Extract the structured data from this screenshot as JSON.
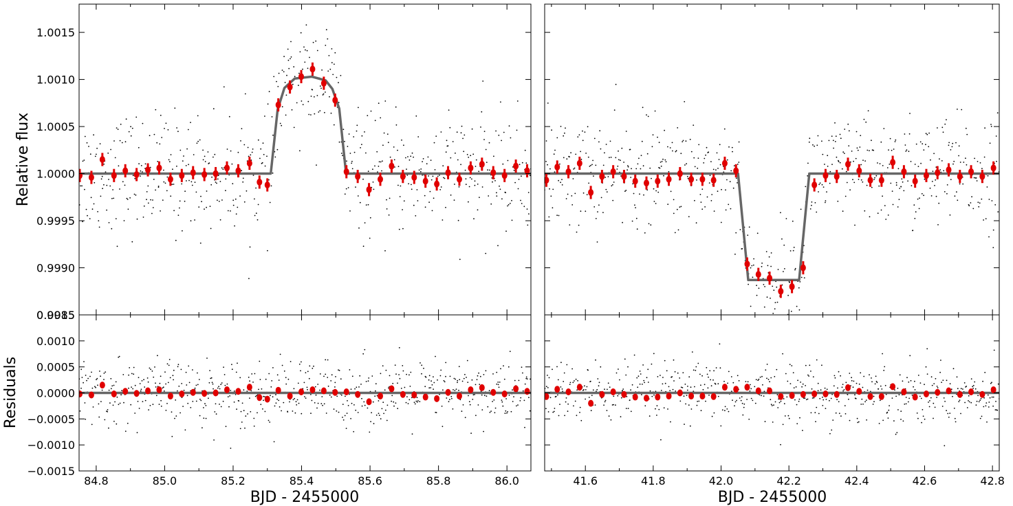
{
  "figure": {
    "ylabel_top": "Relative flux",
    "ylabel_bottom": "Residuals",
    "xlabel_left": "BJD - 2455000",
    "xlabel_right": "BJD - 2455000"
  },
  "colors": {
    "binned": "#e00000",
    "model": "#666666",
    "raw": "#000000"
  },
  "chart_data": [
    {
      "type": "scatter",
      "panel": "top-left",
      "ylabel": "Relative flux",
      "xlim": [
        84.75,
        86.07
      ],
      "ylim": [
        0.9985,
        1.0018
      ],
      "xticks": [
        "84.8",
        "85.0",
        "85.2",
        "85.4",
        "85.6",
        "85.8",
        "86.0"
      ],
      "yticks": [
        "0.9985",
        "0.9990",
        "0.9995",
        "1.0000",
        "1.0005",
        "1.0010",
        "1.0015"
      ],
      "model": {
        "name": "",
        "x": [
          84.75,
          85.31,
          85.33,
          85.35,
          85.38,
          85.43,
          85.47,
          85.49,
          85.51,
          85.53,
          86.07
        ],
        "y": [
          1.0,
          1.0,
          1.00068,
          1.00091,
          1.00101,
          1.00103,
          1.00099,
          1.0009,
          1.00069,
          1.0,
          1.0
        ]
      },
      "binned": [
        [
          84.752,
          0.99998
        ],
        [
          84.786,
          0.99996
        ],
        [
          84.818,
          1.00015
        ],
        [
          84.852,
          0.99998
        ],
        [
          84.885,
          1.00003
        ],
        [
          84.918,
          0.99999
        ],
        [
          84.951,
          1.00004
        ],
        [
          84.984,
          1.00006
        ],
        [
          85.017,
          0.99994
        ],
        [
          85.05,
          0.99998
        ],
        [
          85.083,
          1.00001
        ],
        [
          85.116,
          0.99999
        ],
        [
          85.149,
          1.0
        ],
        [
          85.182,
          1.00006
        ],
        [
          85.215,
          1.00003
        ],
        [
          85.248,
          1.00011
        ],
        [
          85.277,
          0.99991
        ],
        [
          85.3,
          0.99988
        ],
        [
          85.332,
          1.00073
        ],
        [
          85.366,
          1.00092
        ],
        [
          85.399,
          1.00103
        ],
        [
          85.432,
          1.00111
        ],
        [
          85.465,
          1.00096
        ],
        [
          85.498,
          1.00078
        ],
        [
          85.531,
          1.00002
        ],
        [
          85.564,
          0.99997
        ],
        [
          85.597,
          0.99983
        ],
        [
          85.63,
          0.99994
        ],
        [
          85.663,
          1.00008
        ],
        [
          85.696,
          0.99997
        ],
        [
          85.729,
          0.99996
        ],
        [
          85.762,
          0.99992
        ],
        [
          85.795,
          0.99989
        ],
        [
          85.828,
          1.00001
        ],
        [
          85.861,
          0.99994
        ],
        [
          85.894,
          1.00006
        ],
        [
          85.927,
          1.0001
        ],
        [
          85.96,
          1.00001
        ],
        [
          85.993,
          0.99998
        ],
        [
          86.026,
          1.00008
        ],
        [
          86.059,
          1.00003
        ]
      ]
    },
    {
      "type": "scatter",
      "panel": "top-right",
      "ylabel": "",
      "xlim": [
        41.48,
        42.82
      ],
      "ylim": [
        0.9985,
        1.0018
      ],
      "xticks": [
        "41.6",
        "41.8",
        "42.0",
        "42.2",
        "42.4",
        "42.6",
        "42.8"
      ],
      "yticks": [],
      "model": {
        "name": "",
        "x": [
          41.48,
          42.05,
          42.08,
          42.23,
          42.26,
          42.82
        ],
        "y": [
          1.0,
          1.0,
          0.99887,
          0.99887,
          1.0,
          1.0
        ]
      },
      "binned": [
        [
          41.485,
          0.99993
        ],
        [
          41.517,
          1.00007
        ],
        [
          41.55,
          1.00002
        ],
        [
          41.583,
          1.00011
        ],
        [
          41.616,
          0.9998
        ],
        [
          41.649,
          0.99997
        ],
        [
          41.682,
          1.00002
        ],
        [
          41.714,
          0.99997
        ],
        [
          41.747,
          0.99992
        ],
        [
          41.78,
          0.9999
        ],
        [
          41.813,
          0.99992
        ],
        [
          41.846,
          0.99994
        ],
        [
          41.879,
          1.0
        ],
        [
          41.912,
          0.99994
        ],
        [
          41.945,
          0.99994
        ],
        [
          41.978,
          0.99993
        ],
        [
          42.011,
          1.00011
        ],
        [
          42.044,
          1.00003
        ],
        [
          42.077,
          0.99904
        ],
        [
          42.11,
          0.99893
        ],
        [
          42.143,
          0.99889
        ],
        [
          42.176,
          0.99875
        ],
        [
          42.209,
          0.9988
        ],
        [
          42.242,
          0.999
        ],
        [
          42.275,
          0.99988
        ],
        [
          42.308,
          0.99998
        ],
        [
          42.341,
          0.99997
        ],
        [
          42.374,
          1.0001
        ],
        [
          42.407,
          1.00003
        ],
        [
          42.44,
          0.99993
        ],
        [
          42.473,
          0.99993
        ],
        [
          42.506,
          1.00012
        ],
        [
          42.539,
          1.00002
        ],
        [
          42.572,
          0.99992
        ],
        [
          42.605,
          0.99998
        ],
        [
          42.638,
          1.00001
        ],
        [
          42.671,
          1.00004
        ],
        [
          42.704,
          0.99997
        ],
        [
          42.737,
          1.00002
        ],
        [
          42.77,
          0.99997
        ],
        [
          42.803,
          1.00006
        ]
      ]
    },
    {
      "type": "scatter",
      "panel": "bottom-left",
      "ylabel": "Residuals",
      "xlabel": "BJD - 2455000",
      "xlim": [
        84.75,
        86.07
      ],
      "ylim": [
        -0.0015,
        0.0015
      ],
      "xticks": [
        "84.8",
        "85.0",
        "85.2",
        "85.4",
        "85.6",
        "85.8",
        "86.0"
      ],
      "yticks": [
        "-0.0015",
        "-0.0010",
        "-0.0005",
        "0.0000",
        "0.0005",
        "0.0010",
        "0.0015"
      ],
      "model": {
        "name": "",
        "x": [
          84.75,
          86.07
        ],
        "y": [
          0.0,
          0.0
        ]
      },
      "binned": [
        [
          84.752,
          -2e-05
        ],
        [
          84.786,
          -4e-05
        ],
        [
          84.818,
          0.00015
        ],
        [
          84.852,
          -2e-05
        ],
        [
          84.885,
          3e-05
        ],
        [
          84.918,
          -1e-05
        ],
        [
          84.951,
          4e-05
        ],
        [
          84.984,
          6e-05
        ],
        [
          85.017,
          -6e-05
        ],
        [
          85.05,
          -2e-05
        ],
        [
          85.083,
          1e-05
        ],
        [
          85.116,
          -1e-05
        ],
        [
          85.149,
          0.0
        ],
        [
          85.182,
          6e-05
        ],
        [
          85.215,
          3e-05
        ],
        [
          85.248,
          0.00011
        ],
        [
          85.277,
          -9e-05
        ],
        [
          85.3,
          -0.00012
        ],
        [
          85.332,
          5e-05
        ],
        [
          85.366,
          -6e-05
        ],
        [
          85.399,
          2e-05
        ],
        [
          85.432,
          6e-05
        ],
        [
          85.465,
          4e-05
        ],
        [
          85.498,
          1e-05
        ],
        [
          85.531,
          2e-05
        ],
        [
          85.564,
          -3e-05
        ],
        [
          85.597,
          -0.00017
        ],
        [
          85.63,
          -6e-05
        ],
        [
          85.663,
          8e-05
        ],
        [
          85.696,
          -3e-05
        ],
        [
          85.729,
          -4e-05
        ],
        [
          85.762,
          -8e-05
        ],
        [
          85.795,
          -0.00011
        ],
        [
          85.828,
          1e-05
        ],
        [
          85.861,
          -6e-05
        ],
        [
          85.894,
          6e-05
        ],
        [
          85.927,
          0.0001
        ],
        [
          85.96,
          1e-05
        ],
        [
          85.993,
          -2e-05
        ],
        [
          86.026,
          8e-05
        ],
        [
          86.059,
          3e-05
        ]
      ]
    },
    {
      "type": "scatter",
      "panel": "bottom-right",
      "ylabel": "",
      "xlabel": "BJD - 2455000",
      "xlim": [
        41.48,
        42.82
      ],
      "ylim": [
        -0.0015,
        0.0015
      ],
      "xticks": [
        "41.6",
        "41.8",
        "42.0",
        "42.2",
        "42.4",
        "42.6",
        "42.8"
      ],
      "yticks": [],
      "model": {
        "name": "",
        "x": [
          41.48,
          42.82
        ],
        "y": [
          0.0,
          0.0
        ]
      },
      "binned": [
        [
          41.485,
          -7e-05
        ],
        [
          41.517,
          7e-05
        ],
        [
          41.55,
          2e-05
        ],
        [
          41.583,
          0.00011
        ],
        [
          41.616,
          -0.0002
        ],
        [
          41.649,
          -3e-05
        ],
        [
          41.682,
          2e-05
        ],
        [
          41.714,
          -3e-05
        ],
        [
          41.747,
          -8e-05
        ],
        [
          41.78,
          -0.0001
        ],
        [
          41.813,
          -8e-05
        ],
        [
          41.846,
          -6e-05
        ],
        [
          41.879,
          0.0
        ],
        [
          41.912,
          -6e-05
        ],
        [
          41.945,
          -6e-05
        ],
        [
          41.978,
          -7e-05
        ],
        [
          42.011,
          0.00011
        ],
        [
          42.044,
          7e-05
        ],
        [
          42.077,
          0.00011
        ],
        [
          42.11,
          4e-05
        ],
        [
          42.143,
          4e-05
        ],
        [
          42.176,
          -7e-05
        ],
        [
          42.209,
          -5e-05
        ],
        [
          42.242,
          -3e-05
        ],
        [
          42.275,
          -2e-05
        ],
        [
          42.308,
          -2e-05
        ],
        [
          42.341,
          -3e-05
        ],
        [
          42.374,
          0.0001
        ],
        [
          42.407,
          3e-05
        ],
        [
          42.44,
          -7e-05
        ],
        [
          42.473,
          -7e-05
        ],
        [
          42.506,
          0.00012
        ],
        [
          42.539,
          2e-05
        ],
        [
          42.572,
          -8e-05
        ],
        [
          42.605,
          -2e-05
        ],
        [
          42.638,
          1e-05
        ],
        [
          42.671,
          4e-05
        ],
        [
          42.704,
          -3e-05
        ],
        [
          42.737,
          2e-05
        ],
        [
          42.77,
          -3e-05
        ],
        [
          42.803,
          6e-05
        ]
      ]
    }
  ]
}
